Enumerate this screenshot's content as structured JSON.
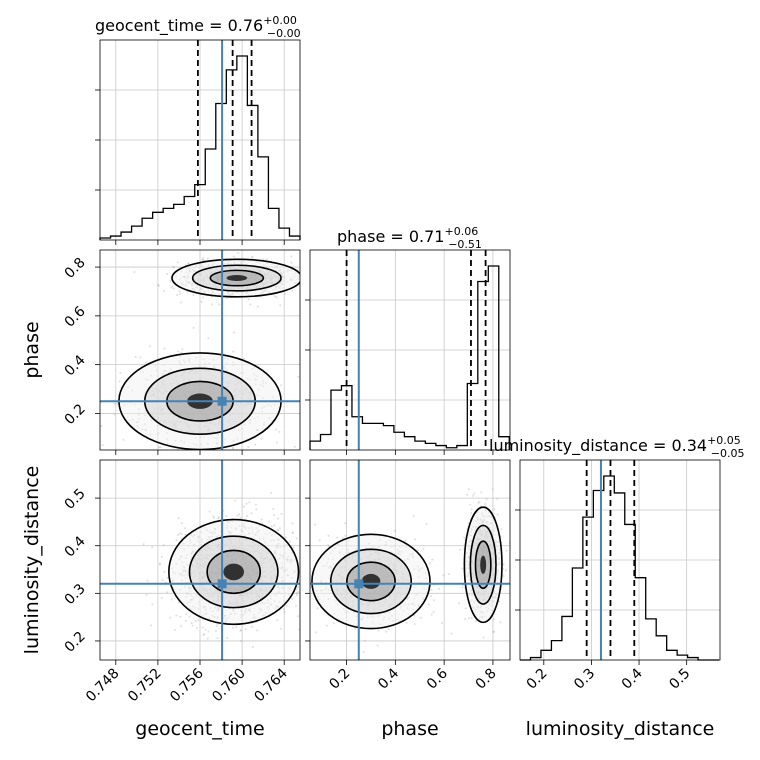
{
  "chart_data": [
    {
      "type": "histogram",
      "panel": "geocent_time",
      "title": {
        "base": "geocent_time = 0.76",
        "plus": "+0.00",
        "minus": "−0.00"
      },
      "xlim": [
        0.7465,
        0.7655
      ],
      "x_ticks": [
        0.748,
        0.752,
        0.756,
        0.76,
        0.764
      ],
      "x_ticklabels": [
        "0.748",
        "0.752",
        "0.756",
        "0.760",
        "0.764"
      ],
      "xlabel": "geocent_time",
      "bin_edges": [
        0.7465,
        0.7475,
        0.7485,
        0.7495,
        0.7505,
        0.7515,
        0.7525,
        0.7535,
        0.7545,
        0.7555,
        0.7565,
        0.7575,
        0.7585,
        0.7595,
        0.7605,
        0.7615,
        0.7625,
        0.7635,
        0.7645,
        0.7655
      ],
      "counts": [
        0.01,
        0.02,
        0.04,
        0.07,
        0.11,
        0.14,
        0.16,
        0.18,
        0.22,
        0.28,
        0.46,
        0.69,
        0.86,
        0.93,
        0.68,
        0.42,
        0.16,
        0.06,
        0.02
      ],
      "quantiles": [
        0.7558,
        0.7591,
        0.7609
      ],
      "truth": 0.7581,
      "grid": true
    },
    {
      "type": "histogram",
      "panel": "phase",
      "title": {
        "base": "phase = 0.71",
        "plus": "+0.06",
        "minus": "−0.51"
      },
      "xlim": [
        0.05,
        0.87
      ],
      "x_ticks": [
        0.2,
        0.4,
        0.6,
        0.8
      ],
      "x_ticklabels": [
        "0.2",
        "0.4",
        "0.6",
        "0.8"
      ],
      "xlabel": "phase",
      "bin_edges": [
        0.05,
        0.093,
        0.136,
        0.179,
        0.222,
        0.265,
        0.308,
        0.351,
        0.394,
        0.437,
        0.48,
        0.523,
        0.566,
        0.609,
        0.652,
        0.695,
        0.738,
        0.781,
        0.824,
        0.867
      ],
      "counts": [
        0.04,
        0.07,
        0.27,
        0.29,
        0.15,
        0.12,
        0.12,
        0.11,
        0.08,
        0.06,
        0.04,
        0.03,
        0.02,
        0.01,
        0.02,
        0.3,
        0.76,
        0.83,
        0.06
      ],
      "quantiles": [
        0.2,
        0.71,
        0.77
      ],
      "truth": 0.25,
      "grid": true
    },
    {
      "type": "histogram",
      "panel": "luminosity_distance",
      "title": {
        "base": "luminosity_distance = 0.34",
        "plus": "+0.05",
        "minus": "−0.05"
      },
      "xlim": [
        0.15,
        0.57
      ],
      "x_ticks": [
        0.2,
        0.3,
        0.4,
        0.5
      ],
      "x_ticklabels": [
        "0.2",
        "0.3",
        "0.4",
        "0.5"
      ],
      "xlabel": "luminosity_distance",
      "bin_edges": [
        0.15,
        0.172,
        0.194,
        0.216,
        0.238,
        0.26,
        0.282,
        0.304,
        0.326,
        0.348,
        0.37,
        0.392,
        0.414,
        0.436,
        0.458,
        0.48,
        0.502,
        0.524,
        0.546,
        0.568
      ],
      "counts": [
        0.0,
        0.01,
        0.04,
        0.08,
        0.18,
        0.38,
        0.59,
        0.7,
        0.76,
        0.69,
        0.56,
        0.34,
        0.17,
        0.1,
        0.04,
        0.02,
        0.01,
        0.0,
        0.0
      ],
      "quantiles": [
        0.29,
        0.34,
        0.39
      ],
      "truth": 0.32,
      "grid": true
    },
    {
      "type": "scatter",
      "panel": "geocent_time-vs-phase",
      "xlim": [
        0.7465,
        0.7655
      ],
      "ylim": [
        0.05,
        0.87
      ],
      "ylabel": "phase",
      "y_ticks": [
        0.2,
        0.4,
        0.6,
        0.8
      ],
      "y_ticklabels": [
        "0.2",
        "0.4",
        "0.6",
        "0.8"
      ],
      "clusters": [
        {
          "x": 0.7595,
          "y": 0.755,
          "sx": 0.0028,
          "sy": 0.035,
          "weight": 0.55
        },
        {
          "x": 0.756,
          "y": 0.25,
          "sx": 0.0035,
          "sy": 0.09,
          "weight": 0.45
        }
      ],
      "truth": [
        0.7581,
        0.25
      ],
      "grid": true
    },
    {
      "type": "scatter",
      "panel": "geocent_time-vs-luminosity_distance",
      "xlim": [
        0.7465,
        0.7655
      ],
      "ylim": [
        0.16,
        0.58
      ],
      "ylabel": "luminosity_distance",
      "y_ticks": [
        0.2,
        0.3,
        0.4,
        0.5
      ],
      "y_ticklabels": [
        "0.2",
        "0.3",
        "0.4",
        "0.5"
      ],
      "clusters": [
        {
          "x": 0.7592,
          "y": 0.345,
          "sx": 0.0028,
          "sy": 0.05,
          "weight": 1.0
        }
      ],
      "truth": [
        0.7581,
        0.32
      ],
      "grid": true
    },
    {
      "type": "scatter",
      "panel": "phase-vs-luminosity_distance",
      "xlim": [
        0.05,
        0.87
      ],
      "ylim": [
        0.16,
        0.58
      ],
      "clusters": [
        {
          "x": 0.3,
          "y": 0.325,
          "sx": 0.11,
          "sy": 0.045,
          "weight": 0.45
        },
        {
          "x": 0.76,
          "y": 0.36,
          "sx": 0.035,
          "sy": 0.055,
          "weight": 0.55
        }
      ],
      "truth": [
        0.25,
        0.32
      ],
      "grid": true
    }
  ],
  "colors": {
    "truth": "#4682b4",
    "grid": "#c8c8c8",
    "hist": "#000000",
    "scatter": "#a0a0a0"
  }
}
